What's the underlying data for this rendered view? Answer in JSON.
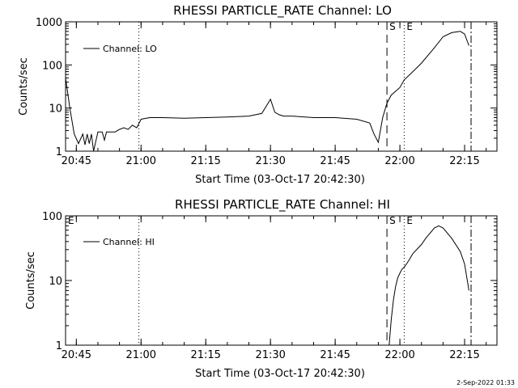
{
  "footer_timestamp": "2-Sep-2022 01:33",
  "chart_data": [
    {
      "type": "line",
      "title": "RHESSI PARTICLE_RATE Channel: LO",
      "xlabel": "Start Time (03-Oct-17 20:42:30)",
      "ylabel": "Counts/sec",
      "y_scale": "log",
      "xlim": [
        "20:42:30",
        "22:22:30"
      ],
      "ylim": [
        1,
        1000
      ],
      "x_ticks": [
        "20:45",
        "21:00",
        "21:15",
        "21:30",
        "21:45",
        "22:00",
        "22:15"
      ],
      "y_ticks": [
        "1",
        "10",
        "100",
        "1000"
      ],
      "legend": {
        "position": "top-left",
        "entries": [
          "Channel: LO"
        ]
      },
      "series": [
        {
          "name": "Channel: LO",
          "x": [
            "20:42:30",
            "20:43:30",
            "20:44:30",
            "20:45:30",
            "20:46:30",
            "20:47:00",
            "20:47:30",
            "20:48:00",
            "20:48:30",
            "20:49:00",
            "20:50:00",
            "20:51:00",
            "20:51:30",
            "20:52:00",
            "20:54:00",
            "20:55:00",
            "20:56:00",
            "20:57:00",
            "20:58:00",
            "20:59:00",
            "21:00:00",
            "21:02:00",
            "21:05:00",
            "21:10:00",
            "21:15:00",
            "21:20:00",
            "21:25:00",
            "21:28:00",
            "21:30:00",
            "21:31:00",
            "21:32:00",
            "21:33:00",
            "21:35:00",
            "21:40:00",
            "21:45:00",
            "21:50:00",
            "21:53:00",
            "21:54:00",
            "21:55:00",
            "21:56:00",
            "21:57:00",
            "21:58:00",
            "22:00:00",
            "22:01:00",
            "22:03:00",
            "22:05:00",
            "22:08:00",
            "22:10:00",
            "22:12:00",
            "22:14:00",
            "22:15:00",
            "22:16:00"
          ],
          "y": [
            50,
            10,
            2.5,
            1.5,
            2.5,
            1.4,
            2.5,
            1.5,
            2.5,
            1.0,
            2.8,
            2.8,
            1.8,
            2.8,
            2.8,
            3.2,
            3.5,
            3.2,
            4.0,
            3.5,
            5.5,
            6.0,
            6.0,
            5.8,
            6.0,
            6.2,
            6.5,
            7.5,
            16,
            8,
            7,
            6.5,
            6.5,
            6.0,
            6.0,
            5.5,
            4.5,
            2.5,
            1.6,
            6,
            13,
            20,
            30,
            45,
            70,
            110,
            250,
            450,
            560,
            600,
            520,
            280
          ]
        }
      ],
      "annotations": [
        {
          "label": "S",
          "x": "21:57:00",
          "style": "dashed"
        },
        {
          "label": "E",
          "x": "22:01:00",
          "style": "dotted"
        },
        {
          "label": "",
          "x": "20:59:30",
          "style": "dotted"
        },
        {
          "label": "",
          "x": "22:16:30",
          "style": "dash-dot"
        }
      ]
    },
    {
      "type": "line",
      "title": "RHESSI PARTICLE_RATE Channel: HI",
      "xlabel": "Start Time (03-Oct-17 20:42:30)",
      "ylabel": "Counts/sec",
      "y_scale": "log",
      "xlim": [
        "20:42:30",
        "22:22:30"
      ],
      "ylim": [
        1,
        100
      ],
      "x_ticks": [
        "20:45",
        "21:00",
        "21:15",
        "21:30",
        "21:45",
        "22:00",
        "22:15"
      ],
      "y_ticks": [
        "1",
        "10",
        "100"
      ],
      "legend": {
        "position": "top-left",
        "entries": [
          "Channel: HI"
        ]
      },
      "series": [
        {
          "name": "Channel: HI",
          "x": [
            "21:57:30",
            "21:58:00",
            "21:58:30",
            "21:59:00",
            "21:59:30",
            "22:00:00",
            "22:00:30",
            "22:01:00",
            "22:02:00",
            "22:03:00",
            "22:05:00",
            "22:06:00",
            "22:08:00",
            "22:09:00",
            "22:10:00",
            "22:12:00",
            "22:14:00",
            "22:15:00",
            "22:16:00"
          ],
          "y": [
            1.0,
            2.5,
            5,
            8,
            11,
            13,
            15,
            16,
            20,
            26,
            36,
            45,
            65,
            70,
            65,
            45,
            28,
            18,
            7
          ]
        }
      ],
      "annotations": [
        {
          "label": "S",
          "x": "21:57:00",
          "style": "dashed"
        },
        {
          "label": "E",
          "x": "22:01:00",
          "style": "dotted"
        },
        {
          "label": "E",
          "x": "20:42:30",
          "style": "none"
        },
        {
          "label": "",
          "x": "20:59:30",
          "style": "dotted"
        },
        {
          "label": "",
          "x": "22:16:30",
          "style": "dash-dot"
        }
      ]
    }
  ]
}
